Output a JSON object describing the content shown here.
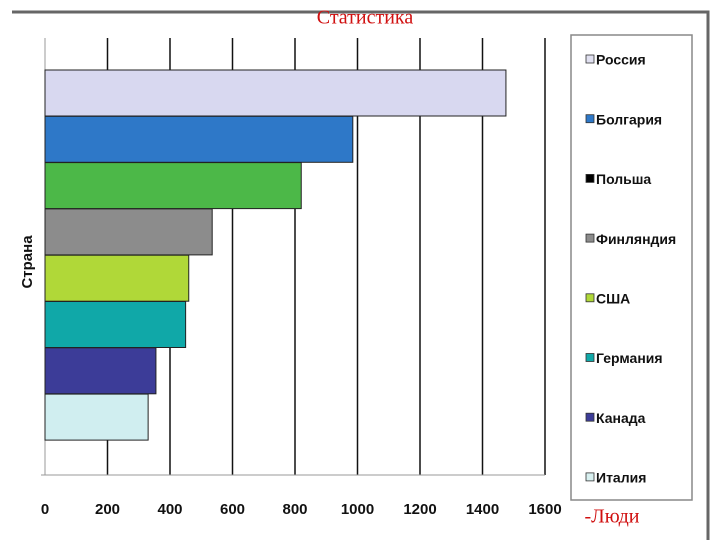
{
  "chart_data": {
    "type": "bar",
    "orientation": "horizontal",
    "title": "Статистика",
    "y_label": "Страна",
    "x_label": "-Люди",
    "categories": [
      "Россия",
      "Болгария",
      "Польша",
      "Финляндия",
      "США",
      "Германия",
      "Канада",
      "Италия"
    ],
    "values": [
      1475,
      985,
      820,
      535,
      460,
      450,
      355,
      330
    ],
    "colors": [
      "#d8d8f0",
      "#2e78c8",
      "#4cb848",
      "#8c8c8c",
      "#b0d838",
      "#10a8a8",
      "#3c3c98",
      "#d0eef0"
    ],
    "legend_colors": [
      "#e0e0f0",
      "#2e78c8",
      "#000000",
      "#8c8c8c",
      "#b0d838",
      "#10a8a8",
      "#3c3c98",
      "#d8f0f0"
    ],
    "xlim": [
      0,
      1600
    ],
    "xticks": [
      0,
      200,
      400,
      600,
      800,
      1000,
      1200,
      1400,
      1600
    ],
    "grid": true,
    "legend": "right"
  }
}
